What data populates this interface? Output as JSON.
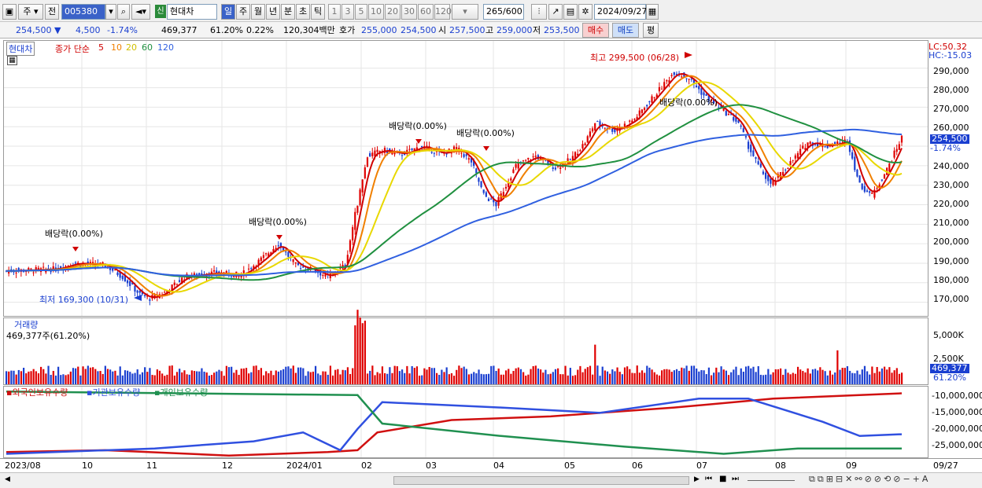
{
  "toolbar": {
    "market": "주",
    "prefix": "전",
    "code": "005380",
    "new_badge": "신",
    "stock_name": "현대차",
    "periods": [
      "일",
      "주",
      "월",
      "년",
      "분",
      "초",
      "틱"
    ],
    "nums": [
      "1",
      "3",
      "5",
      "10",
      "20",
      "30",
      "60",
      "120"
    ],
    "bar_count": "265",
    "bar_total": "/600",
    "date": "2024/09/27"
  },
  "quote": {
    "price": "254,500",
    "arrow": "▼",
    "change": "4,500",
    "rate": "-1.74%",
    "volume": "469,377",
    "vol_rate": "61.20%",
    "turnover": "0.22%",
    "amount": "120,304백만",
    "bid_label": "호가",
    "ask": "255,000",
    "bid": "254,500",
    "open_label": "시",
    "open": "257,500",
    "high_label": "고",
    "high": "259,000",
    "low_label": "저",
    "low": "253,500",
    "buy": "매수",
    "sell": "매도",
    "avg": "평"
  },
  "legend": {
    "name": "현대차",
    "ma_label": "종가 단순",
    "ma_periods": [
      "5",
      "10",
      "20",
      "60",
      "120"
    ],
    "ma_colors": [
      "#d00000",
      "#f08000",
      "#e8d800",
      "#209040",
      "#3060e0"
    ]
  },
  "annotations": {
    "high": "최고 299,500 (06/28)",
    "low": "최저 169,300 (10/31)",
    "dividends": [
      "배당락(0.00%)",
      "배당락(0.00%)",
      "배당락(0.00%)",
      "배당락(0.00%)",
      "배당락(0.00%)"
    ]
  },
  "price_axis": {
    "lc": "LC:50.32",
    "hc": "HC:-15.03",
    "ticks": [
      "290,000",
      "280,000",
      "270,000",
      "260,000",
      "250,000",
      "240,000",
      "230,000",
      "220,000",
      "210,000",
      "200,000",
      "190,000",
      "180,000",
      "170,000"
    ],
    "current": "254,500",
    "current_rate": "-1.74%"
  },
  "volume": {
    "title": "거래량",
    "value": "469,377주(61.20%)",
    "ticks": [
      "5,000K",
      "2,500K"
    ],
    "current": "469,377",
    "current_rate": "61.20%"
  },
  "holdings": {
    "legend": [
      "외국인보유수량",
      "기관보유수량",
      "개인보유수량"
    ],
    "colors": [
      "#d01010",
      "#3050e0",
      "#209050"
    ],
    "ticks": [
      "-10,000,000",
      "-15,000,000",
      "-20,000,000",
      "-25,000,000"
    ]
  },
  "dates": [
    "2023/08",
    "10",
    "11",
    "12",
    "2024/01",
    "02",
    "03",
    "04",
    "05",
    "06",
    "07",
    "08",
    "09",
    "09/27"
  ],
  "chart_data": {
    "type": "candlestick",
    "title": "현대차",
    "ylim": [
      163000,
      304000
    ],
    "high": {
      "value": 299500,
      "date": "06/28"
    },
    "low": {
      "value": 169300,
      "date": "10/31"
    },
    "last": 254500,
    "volume_last": 469377
  }
}
